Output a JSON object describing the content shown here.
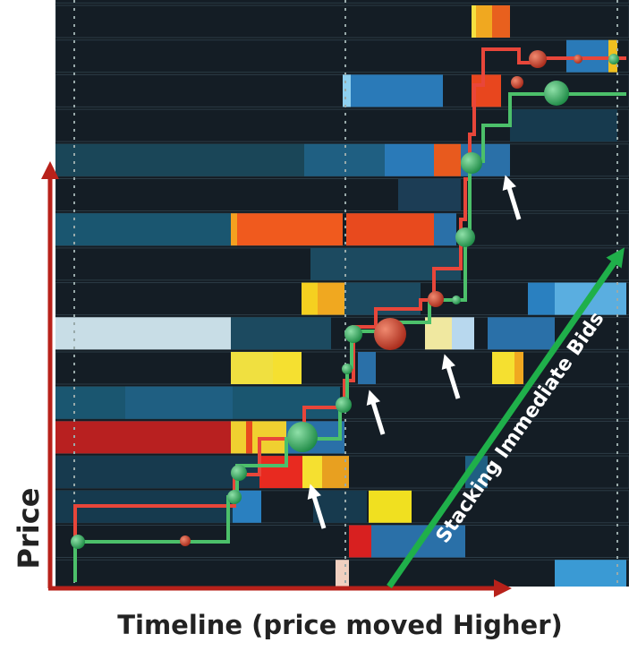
{
  "axis_labels": {
    "y": "Price",
    "x": "Timeline (price moved Higher)"
  },
  "annotation": "Stacking Immediate Bids"
}
